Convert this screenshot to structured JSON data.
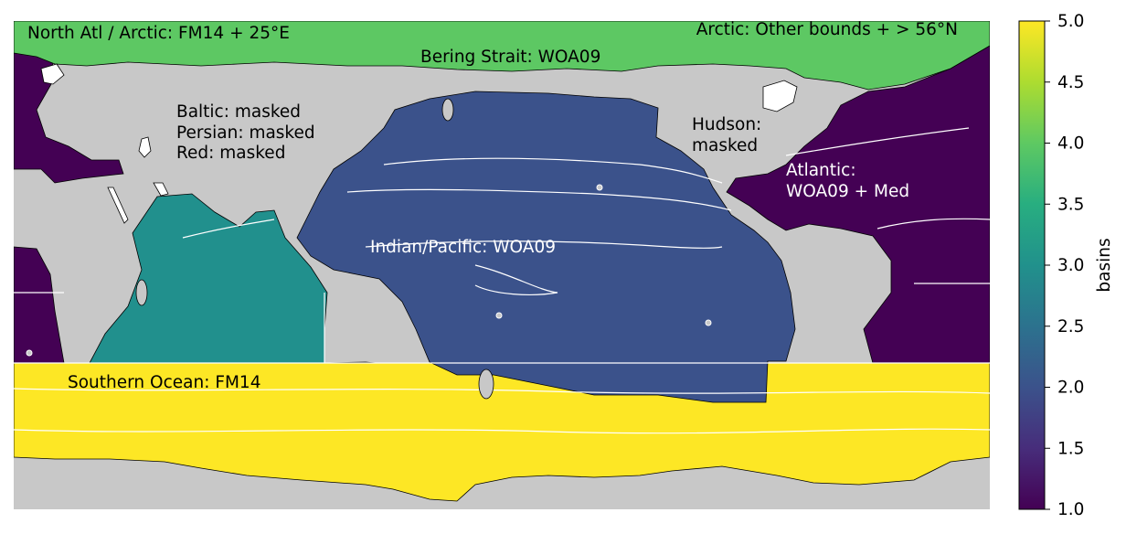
{
  "map": {
    "labels": {
      "north_atl_arctic": "North Atl / Arctic: FM14 + 25°E",
      "arctic_other": "Arctic: Other bounds + > 56°N",
      "bering": "Bering Strait: WOA09",
      "baltic": "Baltic: masked",
      "persian": "Persian: masked",
      "red": "Red: masked",
      "hudson_1": "Hudson:",
      "hudson_2": "masked",
      "atlantic_1": "Atlantic:",
      "atlantic_2": "WOA09 + Med",
      "indo_pacific": "Indian/Pacific: WOA09",
      "southern": "Southern Ocean: FM14"
    },
    "colors": {
      "land": "#c8c8c8",
      "atlantic": "#440154",
      "pacific": "#3b528b",
      "indian": "#21908d",
      "arctic": "#5dc863",
      "southern": "#fde725",
      "coast": "#000000",
      "boundary": "#ffffff"
    }
  },
  "colorbar": {
    "label": "basins",
    "ticks": [
      "1.0",
      "1.5",
      "2.0",
      "2.5",
      "3.0",
      "3.5",
      "4.0",
      "4.5",
      "5.0"
    ],
    "range": [
      1.0,
      5.0
    ],
    "colormap": "viridis"
  }
}
